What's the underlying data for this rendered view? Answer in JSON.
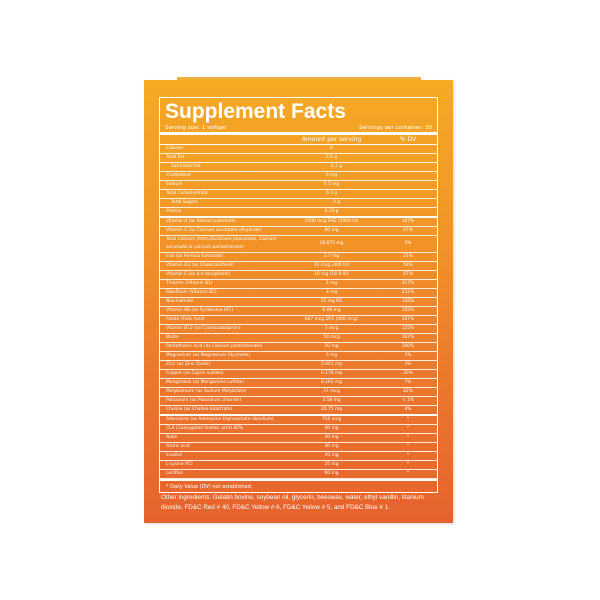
{
  "title": "Supplement Facts",
  "serving_size": "Serving size: 1 softgel",
  "servings_per_container": "Servings per container: 30",
  "header": {
    "amount": "Amount per serving",
    "dv": "% DV"
  },
  "rows": [
    {
      "name": "Calories",
      "amount": "6",
      "dv": ""
    },
    {
      "name": "Total Fat",
      "amount": "0.5 g",
      "dv": ""
    },
    {
      "name": "Saturated Fat",
      "amount": "0.1 g",
      "dv": "",
      "indent": true
    },
    {
      "name": "Cholesterol",
      "amount": "0 mg",
      "dv": ""
    },
    {
      "name": "Sodium",
      "amount": "0.5 mg",
      "dv": ""
    },
    {
      "name": "Total Carbohydrate",
      "amount": "0.3 g",
      "dv": ""
    },
    {
      "name": "Total Sugars",
      "amount": "0 g",
      "dv": "",
      "indent": true
    },
    {
      "name": "Protein",
      "amount": "0.15 g",
      "dv": "",
      "sep": true
    },
    {
      "name": "Vitamin A (as Retinol palmitate)",
      "amount": "1500 mcg RAE (5000 IU)",
      "dv": "167%"
    },
    {
      "name": "Vitamin C (as Calcium ascorbate dihydrate)",
      "amount": "60 mg",
      "dv": "67%"
    },
    {
      "name": "Total Calcium (from Dicalcium phosphate, Calcium ascorbate & calcium pantothenate)",
      "amount": "18.875 mg",
      "dv": "1%",
      "double": true
    },
    {
      "name": "Iron (as Ferrous fumarate)",
      "amount": "3.7 mg",
      "dv": "21%"
    },
    {
      "name": "Vitamin D3 (as Cholecalciferol)",
      "amount": "10 mcg (400 IU)",
      "dv": "50%"
    },
    {
      "name": "Vitamin E (as d-α tocopherol)",
      "amount": "10 mg (14.9 IU)",
      "dv": "67%"
    },
    {
      "name": "Thiamin (Vitamin B1)",
      "amount": "5 mg",
      "dv": "417%"
    },
    {
      "name": "Riboflavin (Vitamin B2)",
      "amount": "3 mg",
      "dv": "231%"
    },
    {
      "name": "Niacinamide",
      "amount": "25 mg NE",
      "dv": "156%"
    },
    {
      "name": "Vitamin B6 (as Pyridoxine HCl)",
      "amount": "6.08 mg",
      "dv": "358%"
    },
    {
      "name": "Folate (Folic Acid)",
      "amount": "667 mcg DFE (400 mcg)",
      "dv": "167%"
    },
    {
      "name": "Vitamin B12 (as Cyanocobalamin)",
      "amount": "3 mcg",
      "dv": "125%"
    },
    {
      "name": "Biotin",
      "amount": "50 mcg",
      "dv": "167%"
    },
    {
      "name": "Pantothenic acid (as Calcium pantothenate)",
      "amount": "10 mg",
      "dv": "200%"
    },
    {
      "name": "Magnesium (as Magnesium Glycinate)",
      "amount": "3 mg",
      "dv": "1%"
    },
    {
      "name": "Zinc (as Zinc Oxide)",
      "amount": "0.401 mg",
      "dv": "3%"
    },
    {
      "name": "Copper (as Cupric sulfate)",
      "amount": "0.178 mg",
      "dv": "20%"
    },
    {
      "name": "Manganese (as Manganese sulfate)",
      "amount": "0.162 mg",
      "dv": "7%"
    },
    {
      "name": "Molybdenum (as Sodium Molybdate)",
      "amount": "37 mcg",
      "dv": "82%"
    },
    {
      "name": "Potassium (as Potassium chloride)",
      "amount": "3.58 mg",
      "dv": "< 1%"
    },
    {
      "name": "Choline (as Choline bitartrate)",
      "amount": "20.75 mg",
      "dv": "4%",
      "sep": true
    },
    {
      "name": "Adenosine (as Adenosine triphosphate disodium)",
      "amount": "750 mcg",
      "dv": "*"
    },
    {
      "name": "CLA (Conjugated linoleic acid) 80%",
      "amount": "40 mg",
      "dv": "*"
    },
    {
      "name": "Rutin",
      "amount": "20 mg",
      "dv": "*"
    },
    {
      "name": "Orotic acid",
      "amount": "30 mg",
      "dv": "*"
    },
    {
      "name": "Inositol",
      "amount": "20 mg",
      "dv": "*"
    },
    {
      "name": "L-Lysine HCl",
      "amount": "25 mg",
      "dv": "*"
    },
    {
      "name": "Lecithin",
      "amount": "60 mg",
      "dv": "*"
    }
  ],
  "footnote": "* Daily Value (DV) not established.",
  "other_ingredients": "Other ingredients: Gelatin bovine, soybean oil, glycerin, beeswax, water, ethyl vanillin, titanium dioxide, FD&C Red # 40, FD&C Yellow # 6, FD&C Yellow # 5, and FD&C Blue # 1.",
  "colors": {
    "top": "#f5aa24",
    "bottom": "#e6622d",
    "text": "#ffffff"
  }
}
